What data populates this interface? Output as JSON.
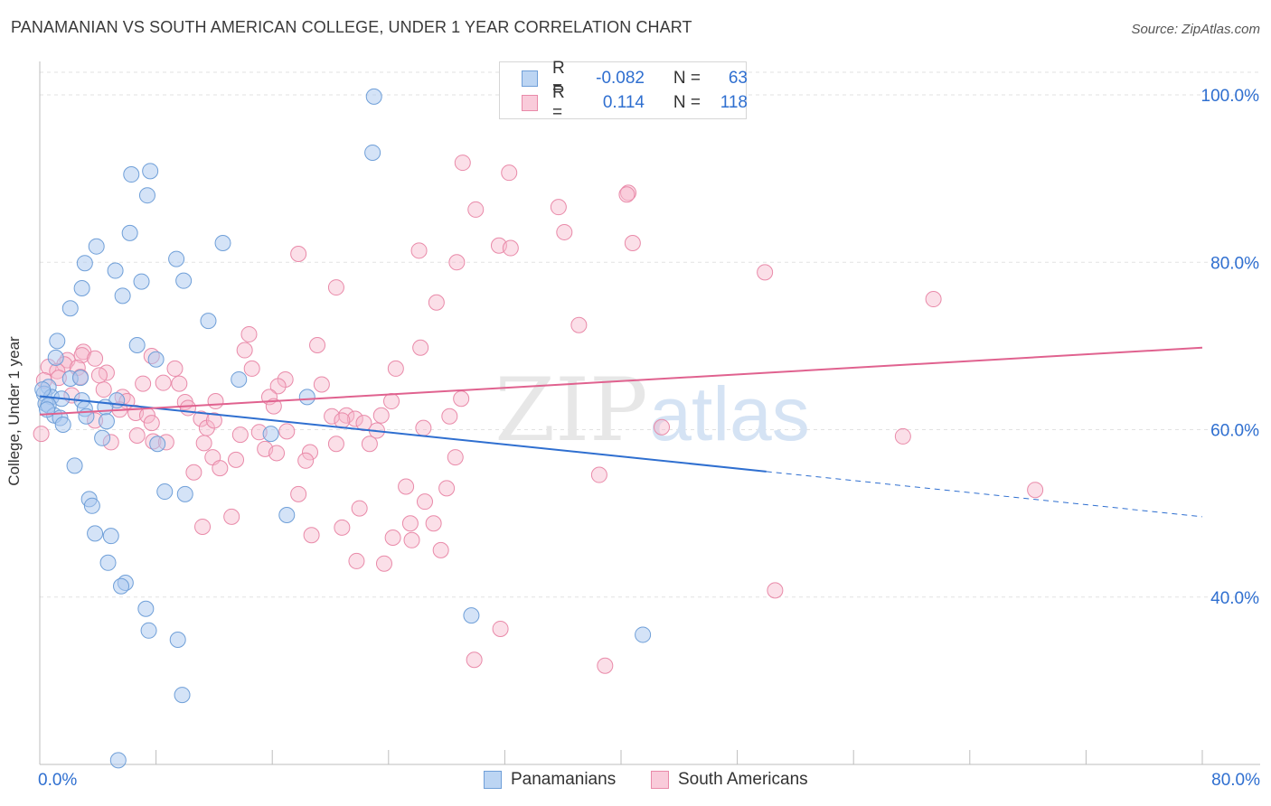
{
  "title": "PANAMANIAN VS SOUTH AMERICAN COLLEGE, UNDER 1 YEAR CORRELATION CHART",
  "source": "Source: ZipAtlas.com",
  "watermark": {
    "zip": "ZIP",
    "atlas": "atlas"
  },
  "legend": {
    "rows": [
      {
        "r_label": "R =",
        "r_value": "-0.082",
        "n_label": "N =",
        "n_value": "63"
      },
      {
        "r_label": "R =",
        "r_value": "0.114",
        "n_label": "N =",
        "n_value": "118"
      }
    ]
  },
  "bottom_legend": [
    "Panamanians",
    "South Americans"
  ],
  "x_axis": {
    "left_label": "0.0%",
    "right_label": "80.0%"
  },
  "chart_data": {
    "type": "scatter",
    "title": "PANAMANIAN VS SOUTH AMERICAN COLLEGE, UNDER 1 YEAR CORRELATION CHART",
    "xlabel": "",
    "ylabel": "College, Under 1 year",
    "xlim": [
      0,
      80
    ],
    "ylim": [
      20,
      104
    ],
    "y_ticks": [
      40,
      60,
      80,
      100
    ],
    "y_tick_labels": [
      "40.0%",
      "60.0%",
      "80.0%",
      "100.0%"
    ],
    "grid": true,
    "legend_position": "top-center",
    "colors": {
      "panamanians_fill": "#a9c8f0",
      "panamanians_stroke": "#6f9fd8",
      "panamanians_line": "#2f6fd0",
      "south_fill": "#f6b8cc",
      "south_stroke": "#e98aa9",
      "south_line": "#e0628f",
      "accent_text": "#2f6fd0"
    },
    "series": [
      {
        "name": "Panamanians",
        "trend": {
          "x0": 0,
          "y0": 64.0,
          "x1": 50,
          "y1": 55.0,
          "dash_to_x": 80,
          "dash_to_y": 49.6
        },
        "points": [
          [
            23.0,
            99.8
          ],
          [
            22.9,
            93.1
          ],
          [
            7.6,
            90.9
          ],
          [
            6.3,
            90.5
          ],
          [
            7.4,
            88.0
          ],
          [
            6.2,
            83.5
          ],
          [
            3.9,
            81.9
          ],
          [
            12.6,
            82.3
          ],
          [
            9.4,
            80.4
          ],
          [
            3.1,
            79.9
          ],
          [
            5.2,
            79.0
          ],
          [
            7.0,
            77.7
          ],
          [
            9.9,
            77.8
          ],
          [
            2.9,
            76.9
          ],
          [
            5.7,
            76.0
          ],
          [
            2.1,
            74.5
          ],
          [
            11.6,
            73.0
          ],
          [
            1.2,
            70.6
          ],
          [
            6.7,
            70.1
          ],
          [
            8.0,
            68.4
          ],
          [
            1.1,
            68.6
          ],
          [
            2.1,
            66.1
          ],
          [
            2.8,
            66.2
          ],
          [
            13.7,
            66.0
          ],
          [
            0.6,
            65.1
          ],
          [
            0.3,
            64.3
          ],
          [
            0.8,
            63.9
          ],
          [
            1.5,
            63.7
          ],
          [
            2.9,
            63.5
          ],
          [
            5.3,
            63.5
          ],
          [
            18.4,
            63.9
          ],
          [
            0.4,
            63.1
          ],
          [
            0.6,
            62.9
          ],
          [
            4.5,
            62.7
          ],
          [
            3.1,
            62.5
          ],
          [
            1.0,
            61.7
          ],
          [
            3.2,
            61.6
          ],
          [
            1.4,
            61.4
          ],
          [
            4.6,
            61.0
          ],
          [
            1.6,
            60.6
          ],
          [
            4.3,
            59.0
          ],
          [
            15.9,
            59.5
          ],
          [
            8.1,
            58.3
          ],
          [
            2.4,
            55.7
          ],
          [
            8.6,
            52.6
          ],
          [
            10.0,
            52.3
          ],
          [
            3.4,
            51.7
          ],
          [
            3.6,
            50.9
          ],
          [
            17.0,
            49.8
          ],
          [
            3.8,
            47.6
          ],
          [
            4.9,
            47.3
          ],
          [
            4.7,
            44.1
          ],
          [
            5.9,
            41.7
          ],
          [
            5.6,
            41.3
          ],
          [
            7.3,
            38.6
          ],
          [
            29.7,
            37.8
          ],
          [
            7.5,
            36.0
          ],
          [
            41.5,
            35.5
          ],
          [
            9.5,
            34.9
          ],
          [
            9.8,
            28.3
          ],
          [
            5.4,
            20.5
          ],
          [
            0.2,
            64.8
          ],
          [
            0.5,
            62.4
          ]
        ]
      },
      {
        "name": "South Americans",
        "trend": {
          "x0": 0,
          "y0": 61.8,
          "x1": 80,
          "y1": 69.8
        },
        "points": [
          [
            39.3,
            100.3
          ],
          [
            29.1,
            91.9
          ],
          [
            32.3,
            90.7
          ],
          [
            40.5,
            88.3
          ],
          [
            40.4,
            88.1
          ],
          [
            35.7,
            86.6
          ],
          [
            30.0,
            86.3
          ],
          [
            36.1,
            83.6
          ],
          [
            40.8,
            82.3
          ],
          [
            31.6,
            82.0
          ],
          [
            32.4,
            81.7
          ],
          [
            26.1,
            81.4
          ],
          [
            17.8,
            81.0
          ],
          [
            28.7,
            80.0
          ],
          [
            49.9,
            78.8
          ],
          [
            20.4,
            77.0
          ],
          [
            61.5,
            75.6
          ],
          [
            27.3,
            75.2
          ],
          [
            37.1,
            72.5
          ],
          [
            14.4,
            71.4
          ],
          [
            19.1,
            70.1
          ],
          [
            26.2,
            69.8
          ],
          [
            14.1,
            69.5
          ],
          [
            3.0,
            69.3
          ],
          [
            2.9,
            68.9
          ],
          [
            7.7,
            68.8
          ],
          [
            3.8,
            68.5
          ],
          [
            1.9,
            68.3
          ],
          [
            1.7,
            67.8
          ],
          [
            0.6,
            67.5
          ],
          [
            2.6,
            67.4
          ],
          [
            1.2,
            67.0
          ],
          [
            9.3,
            67.3
          ],
          [
            4.6,
            66.8
          ],
          [
            14.6,
            67.3
          ],
          [
            24.5,
            67.3
          ],
          [
            2.8,
            66.3
          ],
          [
            8.5,
            65.6
          ],
          [
            7.1,
            65.5
          ],
          [
            9.6,
            65.5
          ],
          [
            16.9,
            66.0
          ],
          [
            16.4,
            65.2
          ],
          [
            19.4,
            65.4
          ],
          [
            4.4,
            64.8
          ],
          [
            2.2,
            64.1
          ],
          [
            5.7,
            63.9
          ],
          [
            6.0,
            63.4
          ],
          [
            10.0,
            63.3
          ],
          [
            12.1,
            63.4
          ],
          [
            15.8,
            63.9
          ],
          [
            24.2,
            63.4
          ],
          [
            29.0,
            63.7
          ],
          [
            10.2,
            62.6
          ],
          [
            5.5,
            62.4
          ],
          [
            6.6,
            62.0
          ],
          [
            16.1,
            62.8
          ],
          [
            7.4,
            61.7
          ],
          [
            11.1,
            61.3
          ],
          [
            20.1,
            61.6
          ],
          [
            21.1,
            61.7
          ],
          [
            21.7,
            61.3
          ],
          [
            23.5,
            61.7
          ],
          [
            28.2,
            61.6
          ],
          [
            3.8,
            61.1
          ],
          [
            11.5,
            60.2
          ],
          [
            20.8,
            61.1
          ],
          [
            22.3,
            60.8
          ],
          [
            26.4,
            60.2
          ],
          [
            42.8,
            60.3
          ],
          [
            15.1,
            59.7
          ],
          [
            17.0,
            59.8
          ],
          [
            13.8,
            59.4
          ],
          [
            23.2,
            59.9
          ],
          [
            59.4,
            59.2
          ],
          [
            6.7,
            59.3
          ],
          [
            7.8,
            58.6
          ],
          [
            8.7,
            58.5
          ],
          [
            4.9,
            58.5
          ],
          [
            20.4,
            58.3
          ],
          [
            22.7,
            58.3
          ],
          [
            11.3,
            58.4
          ],
          [
            15.5,
            57.7
          ],
          [
            16.3,
            57.2
          ],
          [
            18.6,
            57.3
          ],
          [
            11.9,
            56.7
          ],
          [
            13.5,
            56.4
          ],
          [
            28.6,
            56.7
          ],
          [
            18.3,
            56.3
          ],
          [
            12.4,
            55.4
          ],
          [
            10.6,
            54.9
          ],
          [
            38.5,
            54.6
          ],
          [
            25.2,
            53.2
          ],
          [
            28.0,
            53.0
          ],
          [
            68.5,
            52.8
          ],
          [
            17.8,
            52.3
          ],
          [
            26.5,
            51.4
          ],
          [
            22.0,
            50.6
          ],
          [
            13.2,
            49.6
          ],
          [
            25.5,
            48.8
          ],
          [
            27.1,
            48.8
          ],
          [
            20.8,
            48.3
          ],
          [
            11.2,
            48.4
          ],
          [
            18.7,
            47.4
          ],
          [
            24.3,
            47.1
          ],
          [
            25.6,
            46.8
          ],
          [
            27.6,
            45.6
          ],
          [
            21.8,
            44.3
          ],
          [
            23.7,
            44.0
          ],
          [
            50.6,
            40.8
          ],
          [
            31.7,
            36.2
          ],
          [
            29.9,
            32.5
          ],
          [
            38.9,
            31.8
          ],
          [
            0.1,
            59.5
          ],
          [
            0.3,
            65.9
          ],
          [
            7.7,
            60.8
          ],
          [
            1.3,
            66.2
          ],
          [
            4.1,
            66.5
          ],
          [
            12.0,
            61.1
          ]
        ]
      }
    ]
  }
}
